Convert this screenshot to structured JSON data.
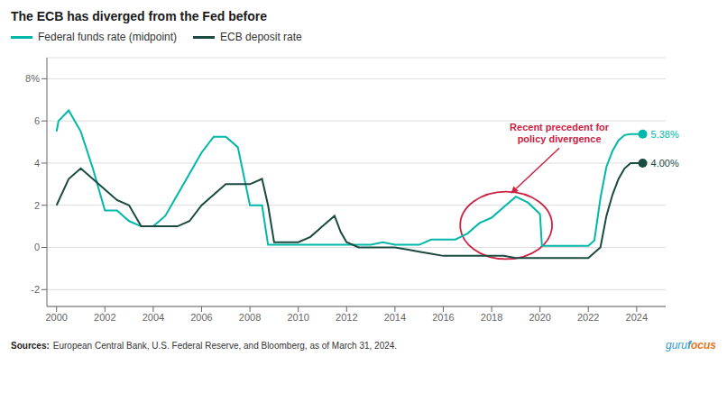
{
  "chart_data": {
    "type": "line",
    "title": "The ECB has diverged from the Fed before",
    "series": [
      {
        "name": "Federal funds rate (midpoint)",
        "color": "#00B8A9",
        "x": [
          2000.0,
          2000.08,
          2000.5,
          2001.0,
          2001.5,
          2002.0,
          2002.5,
          2003.0,
          2003.5,
          2004.0,
          2004.5,
          2005.0,
          2005.5,
          2006.0,
          2006.5,
          2007.0,
          2007.5,
          2008.0,
          2008.5,
          2008.75,
          2009.0,
          2010.0,
          2011.0,
          2012.0,
          2012.5,
          2013.0,
          2013.5,
          2014.0,
          2014.5,
          2015.0,
          2015.5,
          2016.0,
          2016.5,
          2017.0,
          2017.5,
          2018.0,
          2018.5,
          2019.0,
          2019.5,
          2020.0,
          2020.08,
          2020.5,
          2021.0,
          2021.5,
          2022.0,
          2022.25,
          2022.5,
          2022.75,
          2023.0,
          2023.25,
          2023.5,
          2023.75,
          2024.0,
          2024.25
        ],
        "values": [
          5.5,
          6.0,
          6.5,
          5.5,
          3.75,
          1.75,
          1.75,
          1.25,
          1.0,
          1.0,
          1.5,
          2.5,
          3.5,
          4.5,
          5.25,
          5.25,
          4.75,
          2.0,
          2.0,
          0.125,
          0.125,
          0.125,
          0.125,
          0.125,
          0.125,
          0.125,
          0.25,
          0.125,
          0.125,
          0.125,
          0.375,
          0.375,
          0.375,
          0.66,
          1.16,
          1.41,
          1.91,
          2.41,
          2.13,
          1.58,
          0.08,
          0.08,
          0.08,
          0.08,
          0.08,
          0.33,
          2.33,
          3.83,
          4.58,
          5.08,
          5.33,
          5.38,
          5.38,
          5.38
        ],
        "end_label": "5.38%"
      },
      {
        "name": "ECB deposit rate",
        "color": "#1A4A40",
        "x": [
          2000.0,
          2000.5,
          2001.0,
          2001.5,
          2002.0,
          2002.5,
          2003.0,
          2003.5,
          2004.0,
          2004.5,
          2005.0,
          2005.5,
          2006.0,
          2006.5,
          2007.0,
          2007.5,
          2008.0,
          2008.5,
          2008.75,
          2009.0,
          2009.5,
          2010.0,
          2010.5,
          2011.0,
          2011.5,
          2011.75,
          2012.0,
          2012.5,
          2013.0,
          2013.5,
          2014.0,
          2014.5,
          2015.0,
          2015.5,
          2016.0,
          2016.5,
          2017.0,
          2017.5,
          2018.0,
          2018.5,
          2019.0,
          2019.5,
          2020.0,
          2020.5,
          2021.0,
          2021.5,
          2022.0,
          2022.5,
          2022.75,
          2023.0,
          2023.25,
          2023.5,
          2023.75,
          2024.0,
          2024.25
        ],
        "values": [
          2.0,
          3.25,
          3.75,
          3.25,
          2.75,
          2.25,
          2.0,
          1.0,
          1.0,
          1.0,
          1.0,
          1.25,
          2.0,
          2.5,
          3.0,
          3.0,
          3.0,
          3.25,
          2.0,
          0.25,
          0.25,
          0.25,
          0.5,
          1.0,
          1.5,
          0.75,
          0.25,
          0.0,
          0.0,
          0.0,
          0.0,
          -0.1,
          -0.2,
          -0.3,
          -0.4,
          -0.4,
          -0.4,
          -0.4,
          -0.4,
          -0.4,
          -0.5,
          -0.5,
          -0.5,
          -0.5,
          -0.5,
          -0.5,
          -0.5,
          0.0,
          1.5,
          2.5,
          3.25,
          3.75,
          4.0,
          4.0,
          4.0
        ],
        "end_label": "4.00%"
      }
    ],
    "xlim": [
      1999.6,
      2025.2
    ],
    "ylim": [
      -2.8,
      9.0
    ],
    "xticks": [
      2000,
      2002,
      2004,
      2006,
      2008,
      2010,
      2012,
      2014,
      2016,
      2018,
      2020,
      2022,
      2024
    ],
    "yticks": [
      -2,
      0,
      2,
      4,
      6,
      {
        "value": 8,
        "label": "8%"
      }
    ],
    "grid": true,
    "legend": "upper left",
    "annotations": [
      {
        "text": "Recent precedent for\npolicy divergence",
        "color": "#CC2244",
        "x": 2020.8,
        "y": 4.8,
        "arrow_to": [
          2018.8,
          2.55
        ],
        "ellipse": {
          "x": 2018.6,
          "y": 1.05,
          "width": 3.8,
          "height": 3.2
        }
      }
    ],
    "source_label": "Sources:",
    "source": "European Central Bank, U.S. Federal Reserve, and Bloomberg, as of March 31, 2024.",
    "logo": [
      {
        "text": "guru",
        "color": "#3399CC"
      },
      {
        "text": "f",
        "color": "#3399CC"
      },
      {
        "text": "ocus",
        "color": "#E87722"
      }
    ]
  }
}
